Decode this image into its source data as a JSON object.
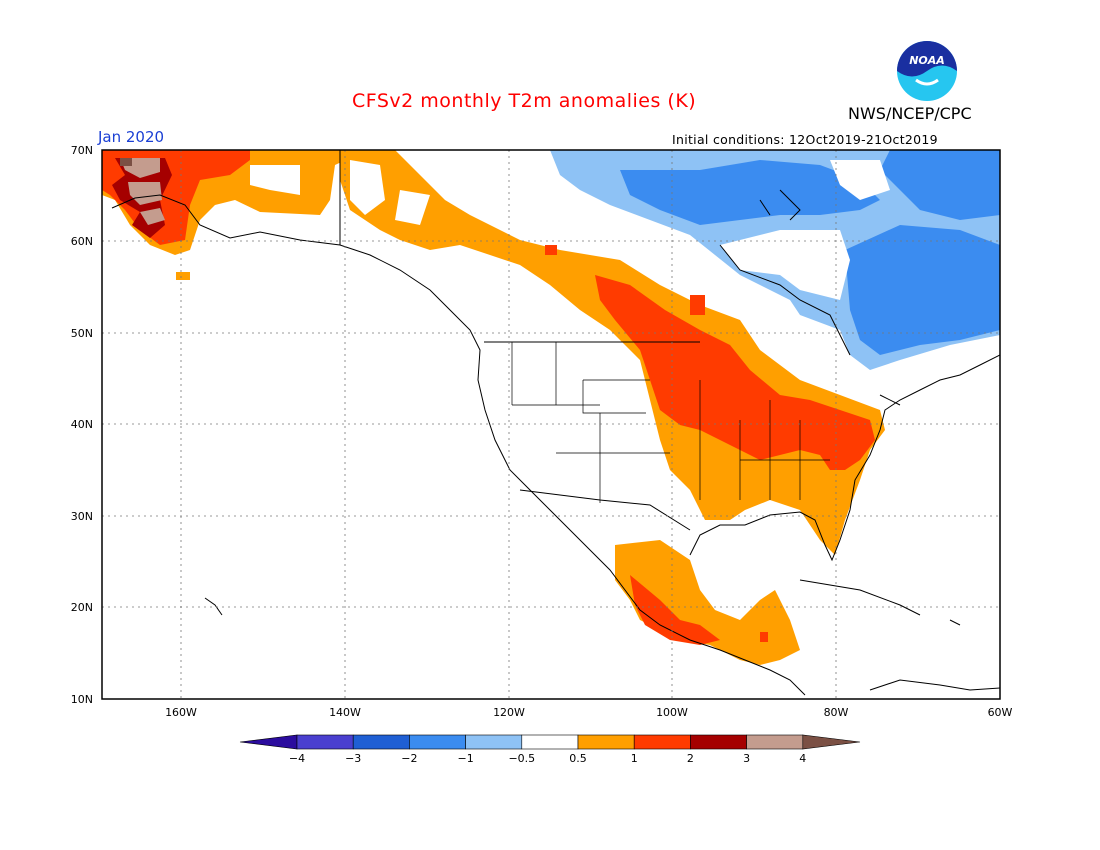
{
  "title": "CFSv2 monthly T2m anomalies (K)",
  "valid_month": "Jan 2020",
  "initial_conditions": "Initial conditions: 12Oct2019-21Oct2019",
  "agency": "NWS/NCEP/CPC",
  "logo_text": "NOAA",
  "map": {
    "lat_labels": [
      "70N",
      "60N",
      "50N",
      "40N",
      "30N",
      "20N",
      "10N"
    ],
    "lon_labels": [
      "160W",
      "140W",
      "120W",
      "100W",
      "80W",
      "60W"
    ]
  },
  "colorbar": {
    "tick_labels": [
      "−4",
      "−3",
      "−2",
      "−1",
      "−0.5",
      "0.5",
      "1",
      "2",
      "3",
      "4"
    ],
    "colors": [
      "#2b0c9e",
      "#4a3fcf",
      "#1f5fd4",
      "#3b8cf0",
      "#8ec2f5",
      "#ffffff",
      "#ff9f00",
      "#ff3b00",
      "#a50000",
      "#c49c8e",
      "#7b5044"
    ]
  },
  "chart_data": {
    "type": "heatmap",
    "title": "CFSv2 monthly T2m anomalies (K)",
    "domain": {
      "lon": [
        -172,
        -60
      ],
      "lat": [
        10,
        70
      ]
    },
    "levels": [
      -4,
      -3,
      -2,
      -1,
      -0.5,
      0.5,
      1,
      2,
      3,
      4
    ],
    "colors": {
      "bin_minus1_to_minus0.5": "#8ec2f5",
      "bin_minus2_to_minus1": "#3b8cf0",
      "bin_0.5_to_1": "#ff9f00",
      "bin_1_to_2": "#ff3b00",
      "bin_2_to_3": "#a50000",
      "bin_3_to_4": "#c49c8e"
    },
    "regions": [
      {
        "name": "western Alaska",
        "anomaly_bin": "3 to 4",
        "color": "#c49c8e"
      },
      {
        "name": "western Alaska coast",
        "anomaly_bin": "2 to 3",
        "color": "#a50000"
      },
      {
        "name": "Alaska north slope",
        "anomaly_bin": "1 to 2",
        "color": "#ff3b00"
      },
      {
        "name": "Yukon / NW Canada band",
        "anomaly_bin": "0.5 to 1",
        "color": "#ff9f00"
      },
      {
        "name": "Canadian Prairies to Upper Midwest",
        "anomaly_bin": "1 to 2",
        "color": "#ff3b00"
      },
      {
        "name": "Central and Eastern US",
        "anomaly_bin": "0.5 to 2",
        "color": "#ff9f00"
      },
      {
        "name": "Ohio Valley / Mid-Atlantic",
        "anomaly_bin": "1 to 2",
        "color": "#ff3b00"
      },
      {
        "name": "Mexico and Central America",
        "anomaly_bin": "0.5 to 2",
        "color": "#ff9f00"
      },
      {
        "name": "Nunavut / Hudson Bay region",
        "anomaly_bin": "-2 to -1",
        "color": "#3b8cf0"
      },
      {
        "name": "Quebec / Labrador",
        "anomaly_bin": "-2 to -0.5",
        "color": "#3b8cf0"
      }
    ]
  }
}
